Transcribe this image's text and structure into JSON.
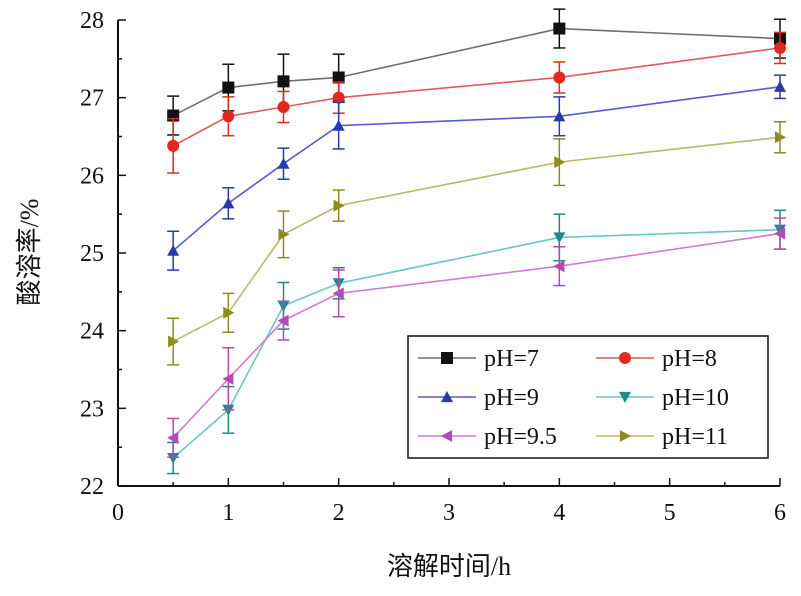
{
  "chart_data": {
    "type": "line",
    "xlabel": "溶解时间/h",
    "ylabel": "酸溶率/%",
    "xlim": [
      0,
      6
    ],
    "ylim": [
      22,
      28
    ],
    "xticks": [
      0,
      1,
      2,
      3,
      4,
      5,
      6
    ],
    "yticks": [
      22,
      23,
      24,
      25,
      26,
      27,
      28
    ],
    "x": [
      0.5,
      1,
      1.5,
      2,
      4,
      6
    ],
    "grid": false,
    "legend_position": "bottom-right",
    "series": [
      {
        "name": "pH=7",
        "color": "#6f6f6f",
        "marker_color": "#111111",
        "marker": "square",
        "values": [
          26.77,
          27.13,
          27.21,
          27.26,
          27.89,
          27.76
        ],
        "errors": [
          0.25,
          0.3,
          0.35,
          0.3,
          0.25,
          0.25
        ]
      },
      {
        "name": "pH=8",
        "color": "#e05a5a",
        "marker_color": "#e02a20",
        "marker": "circle",
        "values": [
          26.38,
          26.76,
          26.88,
          27.0,
          27.26,
          27.64
        ],
        "errors": [
          0.35,
          0.25,
          0.2,
          0.2,
          0.2,
          0.2
        ]
      },
      {
        "name": "pH=9",
        "color": "#5a5ad0",
        "marker_color": "#2a3aa8",
        "marker": "triangle-up",
        "values": [
          25.03,
          25.64,
          26.15,
          26.64,
          26.76,
          27.14
        ],
        "errors": [
          0.25,
          0.2,
          0.2,
          0.3,
          0.25,
          0.15
        ]
      },
      {
        "name": "pH=10",
        "color": "#6cc6c6",
        "marker_color": "#1f8a8a",
        "marker": "triangle-down",
        "values": [
          22.36,
          22.98,
          24.32,
          24.61,
          25.2,
          25.3
        ],
        "errors": [
          0.2,
          0.3,
          0.3,
          0.2,
          0.3,
          0.25
        ]
      },
      {
        "name": "pH=9.5",
        "color": "#d27ad2",
        "marker_color": "#b44ab4",
        "marker": "triangle-left",
        "values": [
          22.62,
          23.38,
          24.13,
          24.48,
          24.83,
          25.25
        ],
        "errors": [
          0.25,
          0.4,
          0.25,
          0.3,
          0.25,
          0.2
        ]
      },
      {
        "name": "pH=11",
        "color": "#b8b86a",
        "marker_color": "#8c8c22",
        "marker": "triangle-right",
        "values": [
          23.86,
          24.23,
          25.24,
          25.61,
          26.17,
          26.49
        ],
        "errors": [
          0.3,
          0.25,
          0.3,
          0.2,
          0.3,
          0.2
        ]
      }
    ]
  }
}
